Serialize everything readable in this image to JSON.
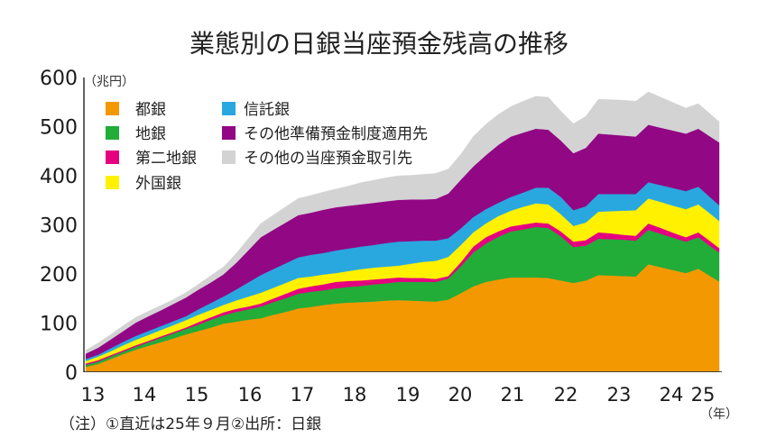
{
  "chart_data": {
    "type": "area",
    "stacked": true,
    "title": "業態別の日銀当座預金残高の推移",
    "ylabel": "（兆円）",
    "xlabel": "（年）",
    "ylim": [
      0,
      600
    ],
    "y_ticks": [
      0,
      100,
      200,
      300,
      400,
      500,
      600
    ],
    "x_tick_labels": [
      "13",
      "14",
      "15",
      "16",
      "17",
      "18",
      "19",
      "20",
      "21",
      "22",
      "23",
      "24",
      "25"
    ],
    "grid": false,
    "legend_position": "top-left",
    "note": "（注）①直近は25年９月②出所：日銀",
    "x": [
      "2013-01",
      "2013-04",
      "2013-07",
      "2013-10",
      "2014-01",
      "2014-04",
      "2014-07",
      "2014-10",
      "2015-01",
      "2015-04",
      "2015-07",
      "2015-10",
      "2016-01",
      "2016-04",
      "2016-07",
      "2016-10",
      "2017-01",
      "2017-04",
      "2017-07",
      "2017-10",
      "2018-01",
      "2018-04",
      "2018-07",
      "2018-10",
      "2019-01",
      "2019-04",
      "2019-07",
      "2019-10",
      "2020-01",
      "2020-04",
      "2020-07",
      "2020-10",
      "2021-01",
      "2021-04",
      "2021-07",
      "2021-10",
      "2022-01",
      "2022-04",
      "2022-07",
      "2022-10",
      "2023-01",
      "2023-04",
      "2023-07",
      "2023-10",
      "2024-01",
      "2024-04",
      "2024-07",
      "2024-10",
      "2025-01",
      "2025-04",
      "2025-07",
      "2025-09"
    ],
    "series": [
      {
        "name": "都銀",
        "color": "#F39800",
        "values": [
          9,
          15,
          25,
          35,
          44,
          52,
          59,
          67,
          75,
          82,
          89,
          97,
          101,
          105,
          108,
          115,
          121,
          128,
          131,
          135,
          138,
          140,
          141,
          142,
          144,
          145,
          144,
          143,
          142,
          146,
          159,
          173,
          182,
          187,
          191,
          191,
          191,
          190,
          185,
          180,
          185,
          196,
          195,
          194,
          193,
          218,
          212,
          206,
          200,
          209,
          193,
          183
        ]
      },
      {
        "name": "地銀",
        "color": "#22AC38",
        "values": [
          4,
          5,
          5,
          5,
          6,
          7,
          9,
          10,
          11,
          13,
          16,
          17,
          20,
          21,
          24,
          26,
          28,
          30,
          31,
          30,
          31,
          32,
          33,
          35,
          35,
          37,
          38,
          39,
          40,
          43,
          55,
          69,
          78,
          87,
          94,
          98,
          103,
          102,
          90,
          73,
          71,
          74,
          74,
          74,
          73,
          70,
          68,
          66,
          64,
          64,
          61,
          59
        ]
      },
      {
        "name": "第二地銀",
        "color": "#E4007F",
        "values": [
          3,
          3,
          3,
          3,
          3,
          3,
          3,
          3,
          3,
          5,
          5,
          6,
          6,
          6,
          6,
          7,
          9,
          10,
          11,
          12,
          13,
          12,
          11,
          10,
          10,
          9,
          8,
          8,
          6,
          5,
          8,
          12,
          13,
          11,
          10,
          10,
          9,
          9,
          10,
          11,
          11,
          13,
          12,
          10,
          10,
          13,
          12,
          10,
          9,
          10,
          10,
          9
        ]
      },
      {
        "name": "外国銀",
        "color": "#FFF100",
        "values": [
          5,
          7,
          8,
          10,
          11,
          12,
          13,
          14,
          15,
          15,
          15,
          15,
          17,
          20,
          22,
          22,
          22,
          22,
          20,
          20,
          18,
          20,
          23,
          24,
          24,
          24,
          29,
          33,
          37,
          39,
          35,
          29,
          28,
          31,
          32,
          36,
          39,
          39,
          35,
          32,
          36,
          42,
          45,
          49,
          52,
          51,
          53,
          55,
          57,
          57,
          56,
          55
        ]
      },
      {
        "name": "信託銀",
        "color": "#29A8E0",
        "values": [
          4,
          4,
          6,
          7,
          8,
          8,
          8,
          8,
          8,
          11,
          14,
          17,
          22,
          29,
          36,
          38,
          40,
          42,
          44,
          44,
          46,
          46,
          46,
          46,
          48,
          49,
          46,
          43,
          41,
          38,
          34,
          31,
          29,
          27,
          28,
          29,
          32,
          34,
          35,
          32,
          33,
          36,
          35,
          34,
          33,
          33,
          34,
          36,
          37,
          36,
          33,
          32
        ]
      },
      {
        "name": "その他準備預金制度適用先",
        "color": "#920783",
        "values": [
          11,
          14,
          18,
          22,
          27,
          30,
          32,
          35,
          38,
          40,
          42,
          45,
          54,
          65,
          77,
          80,
          83,
          86,
          86,
          88,
          88,
          87,
          86,
          86,
          85,
          85,
          85,
          84,
          85,
          91,
          99,
          103,
          110,
          118,
          123,
          122,
          120,
          118,
          115,
          116,
          119,
          123,
          121,
          119,
          117,
          117,
          117,
          117,
          117,
          118,
          124,
          128
        ]
      },
      {
        "name": "その他の当座預金取引先",
        "color": "#D3D3D4",
        "values": [
          7,
          10,
          10,
          11,
          11,
          10,
          10,
          9,
          10,
          11,
          14,
          15,
          19,
          24,
          28,
          30,
          32,
          34,
          35,
          36,
          37,
          40,
          44,
          46,
          48,
          49,
          49,
          51,
          52,
          50,
          52,
          61,
          63,
          62,
          61,
          64,
          66,
          66,
          60,
          60,
          64,
          70,
          71,
          72,
          72,
          67,
          62,
          57,
          52,
          51,
          46,
          42
        ]
      }
    ]
  }
}
